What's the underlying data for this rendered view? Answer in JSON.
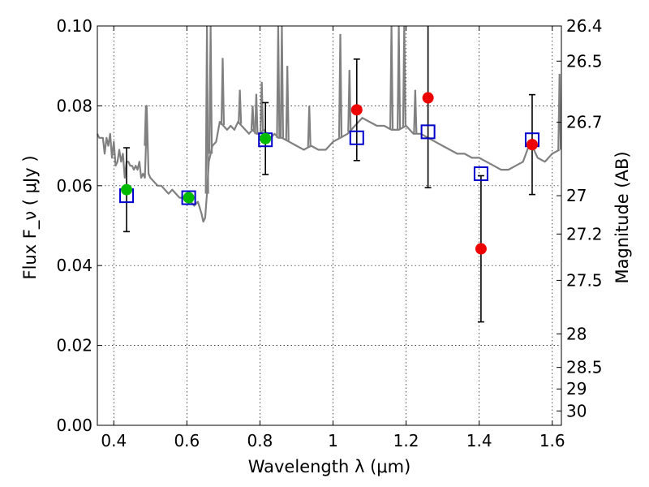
{
  "chart_data": {
    "type": "scatter",
    "xlabel": "Wavelength  λ (μm)",
    "ylabel": "Flux  F_ν  ( μJy )",
    "ylabel_right": "Magnitude (AB)",
    "xlim": [
      0.355,
      1.625
    ],
    "ylim": [
      0.0,
      0.1
    ],
    "x_ticks": [
      0.4,
      0.6,
      0.8,
      1.0,
      1.2,
      1.4,
      1.6
    ],
    "x_tick_labels": [
      "0.4",
      "0.6",
      "0.8",
      "1",
      "1.2",
      "1.4",
      "1.6"
    ],
    "y_ticks": [
      0.0,
      0.02,
      0.04,
      0.06,
      0.08,
      0.1
    ],
    "y_tick_labels": [
      "0.00",
      "0.02",
      "0.04",
      "0.06",
      "0.08",
      "0.10"
    ],
    "right_ticks": [
      {
        "label": "26.4",
        "flux": 0.1
      },
      {
        "label": "26.5",
        "flux": 0.0912
      },
      {
        "label": "26.7",
        "flux": 0.0759
      },
      {
        "label": "27",
        "flux": 0.0575
      },
      {
        "label": "27.2",
        "flux": 0.0479
      },
      {
        "label": "27.5",
        "flux": 0.0363
      },
      {
        "label": "28",
        "flux": 0.0229
      },
      {
        "label": "28.5",
        "flux": 0.0145
      },
      {
        "label": "29",
        "flux": 0.0091
      },
      {
        "label": "30",
        "flux": 0.0036
      }
    ],
    "grid": true,
    "colors": {
      "template": "#808080",
      "model_box": "#0000cc",
      "detection": "#00bb00",
      "measured": "#ee0000",
      "errorbar": "#000000"
    },
    "series": [
      {
        "kind": "line",
        "x": [
          0.355,
          0.36,
          0.37,
          0.375,
          0.38,
          0.385,
          0.39,
          0.395,
          0.4,
          0.405,
          0.41,
          0.415,
          0.42,
          0.425,
          0.43,
          0.435,
          0.44,
          0.445,
          0.45,
          0.455,
          0.46,
          0.465,
          0.47,
          0.475,
          0.48,
          0.485,
          0.488,
          0.49,
          0.495,
          0.5,
          0.51,
          0.52,
          0.53,
          0.54,
          0.55,
          0.56,
          0.57,
          0.58,
          0.59,
          0.6,
          0.61,
          0.62,
          0.63,
          0.64,
          0.645,
          0.65,
          0.655,
          0.66,
          0.67,
          0.68,
          0.69,
          0.7,
          0.71,
          0.72,
          0.73,
          0.74,
          0.75,
          0.76,
          0.77,
          0.78,
          0.79,
          0.8,
          0.81,
          0.82,
          0.83,
          0.84,
          0.85,
          0.86,
          0.88,
          0.9,
          0.92,
          0.94,
          0.96,
          0.98,
          1.0,
          1.02,
          1.04,
          1.06,
          1.08,
          1.1,
          1.12,
          1.14,
          1.16,
          1.18,
          1.2,
          1.22,
          1.24,
          1.26,
          1.28,
          1.3,
          1.32,
          1.34,
          1.36,
          1.38,
          1.4,
          1.42,
          1.44,
          1.46,
          1.48,
          1.5,
          1.52,
          1.54,
          1.56,
          1.58,
          1.6,
          1.62
        ],
        "y": [
          0.073,
          0.072,
          0.072,
          0.068,
          0.072,
          0.07,
          0.073,
          0.067,
          0.071,
          0.065,
          0.066,
          0.069,
          0.066,
          0.068,
          0.062,
          0.066,
          0.066,
          0.065,
          0.065,
          0.064,
          0.065,
          0.064,
          0.066,
          0.062,
          0.063,
          0.062,
          0.07,
          0.08,
          0.063,
          0.062,
          0.061,
          0.06,
          0.06,
          0.059,
          0.058,
          0.059,
          0.058,
          0.057,
          0.057,
          0.056,
          0.056,
          0.055,
          0.056,
          0.053,
          0.051,
          0.052,
          0.058,
          0.066,
          0.07,
          0.071,
          0.076,
          0.075,
          0.074,
          0.075,
          0.074,
          0.076,
          0.075,
          0.074,
          0.073,
          0.074,
          0.073,
          0.073,
          0.074,
          0.073,
          0.072,
          0.073,
          0.072,
          0.072,
          0.071,
          0.07,
          0.069,
          0.07,
          0.069,
          0.069,
          0.071,
          0.072,
          0.073,
          0.075,
          0.077,
          0.076,
          0.075,
          0.075,
          0.074,
          0.074,
          0.075,
          0.073,
          0.073,
          0.072,
          0.071,
          0.07,
          0.069,
          0.068,
          0.068,
          0.067,
          0.067,
          0.066,
          0.065,
          0.064,
          0.064,
          0.065,
          0.066,
          0.071,
          0.067,
          0.066,
          0.068,
          0.069
        ],
        "spikes": [
          [
            0.488,
            0.08
          ],
          [
            0.655,
            0.1
          ],
          [
            0.665,
            0.1
          ],
          [
            0.698,
            0.092
          ],
          [
            0.745,
            0.084
          ],
          [
            0.78,
            0.08
          ],
          [
            0.79,
            0.083
          ],
          [
            0.805,
            0.086
          ],
          [
            0.85,
            0.1
          ],
          [
            0.86,
            0.1
          ],
          [
            0.875,
            0.09
          ],
          [
            0.935,
            0.08
          ],
          [
            1.02,
            0.098
          ],
          [
            1.045,
            0.089
          ],
          [
            1.16,
            0.1
          ],
          [
            1.18,
            0.1
          ],
          [
            1.195,
            0.1
          ],
          [
            1.225,
            0.084
          ],
          [
            1.62,
            0.088
          ]
        ]
      },
      {
        "kind": "open-square",
        "x": [
          0.435,
          0.605,
          0.815,
          1.065,
          1.26,
          1.405,
          1.545
        ],
        "y": [
          0.0575,
          0.057,
          0.0715,
          0.072,
          0.0735,
          0.063,
          0.0715
        ]
      },
      {
        "kind": "filled-circle",
        "color": "green",
        "x": [
          0.435,
          0.605,
          0.815
        ],
        "y": [
          0.059,
          0.057,
          0.0718
        ],
        "err": [
          0.0105,
          0.0,
          0.009
        ]
      },
      {
        "kind": "filled-circle",
        "color": "red",
        "x": [
          1.065,
          1.26,
          1.405,
          1.545
        ],
        "y": [
          0.079,
          0.082,
          0.0442,
          0.0703
        ],
        "err": [
          0.0127,
          0.0225,
          0.0183,
          0.0125
        ]
      }
    ]
  }
}
